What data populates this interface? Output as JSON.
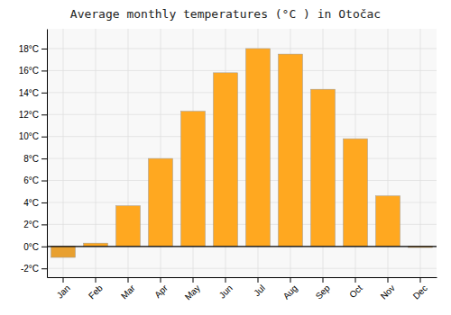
{
  "chart_data": {
    "type": "bar",
    "title": "Average monthly temperatures (°C ) in Otočac",
    "categories": [
      "Jan",
      "Feb",
      "Mar",
      "Apr",
      "May",
      "Jun",
      "Jul",
      "Aug",
      "Sep",
      "Oct",
      "Nov",
      "Dec"
    ],
    "values": [
      -1.0,
      0.3,
      3.7,
      8.0,
      12.3,
      15.8,
      18.0,
      17.5,
      14.3,
      9.8,
      4.6,
      -0.1
    ],
    "colors": [
      "#E8A030",
      "#FFA820",
      "#FFA820",
      "#FFA820",
      "#FFA820",
      "#FFA820",
      "#FFA820",
      "#FFA820",
      "#FFA820",
      "#FFA820",
      "#FFA820",
      "#E8A030"
    ],
    "ylim": [
      -2.8,
      19.8
    ],
    "yticks": [
      {
        "value": -2,
        "label": "-2°C"
      },
      {
        "value": 0,
        "label": "0°C"
      },
      {
        "value": 2,
        "label": "2°C"
      },
      {
        "value": 4,
        "label": "4°C"
      },
      {
        "value": 6,
        "label": "6°C"
      },
      {
        "value": 8,
        "label": "8°C"
      },
      {
        "value": 10,
        "label": "10°C"
      },
      {
        "value": 12,
        "label": "12°C"
      },
      {
        "value": 14,
        "label": "14°C"
      },
      {
        "value": 16,
        "label": "16°C"
      },
      {
        "value": 18,
        "label": "18°C"
      }
    ],
    "grid": true
  }
}
